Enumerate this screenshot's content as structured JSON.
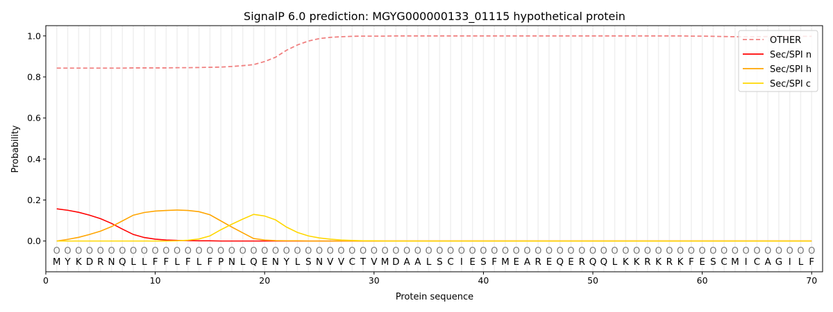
{
  "chart_data": {
    "type": "line",
    "title": "SignalP 6.0 prediction: MGYG000000133_01115 hypothetical protein",
    "xlabel": "Protein sequence",
    "ylabel": "Probability",
    "xlim": [
      0,
      71
    ],
    "ylim": [
      -0.15,
      1.05
    ],
    "xticks": [
      0,
      10,
      20,
      30,
      40,
      50,
      60,
      70
    ],
    "yticks": [
      "0.0",
      "0.2",
      "0.4",
      "0.6",
      "0.8",
      "1.0"
    ],
    "grid": "vertical lines at each residue",
    "legend_position": "top-right",
    "sequence": [
      "M",
      "Y",
      "K",
      "D",
      "R",
      "N",
      "Q",
      "L",
      "L",
      "F",
      "F",
      "L",
      "F",
      "L",
      "F",
      "P",
      "N",
      "L",
      "Q",
      "E",
      "N",
      "Y",
      "L",
      "S",
      "N",
      "V",
      "V",
      "C",
      "T",
      "V",
      "M",
      "D",
      "A",
      "A",
      "L",
      "S",
      "C",
      "I",
      "E",
      "S",
      "F",
      "M",
      "E",
      "A",
      "R",
      "E",
      "Q",
      "E",
      "R",
      "Q",
      "Q",
      "L",
      "K",
      "K",
      "R",
      "K",
      "R",
      "K",
      "F",
      "E",
      "S",
      "C",
      "M",
      "I",
      "C",
      "A",
      "G",
      "I",
      "L",
      "F"
    ],
    "position_marker": "O",
    "series": [
      {
        "name": "OTHER",
        "color": "#f08080",
        "style": "dashed",
        "values": [
          0.843,
          0.843,
          0.843,
          0.843,
          0.843,
          0.843,
          0.843,
          0.844,
          0.844,
          0.844,
          0.844,
          0.845,
          0.845,
          0.846,
          0.847,
          0.848,
          0.851,
          0.855,
          0.86,
          0.875,
          0.896,
          0.93,
          0.956,
          0.975,
          0.987,
          0.993,
          0.996,
          0.998,
          0.999,
          0.999,
          0.999,
          1.0,
          1.0,
          1.0,
          1.0,
          1.0,
          1.0,
          1.0,
          1.0,
          1.0,
          1.0,
          1.0,
          1.0,
          1.0,
          1.0,
          1.0,
          1.0,
          1.0,
          1.0,
          1.0,
          1.0,
          1.0,
          1.0,
          1.0,
          1.0,
          1.0,
          1.0,
          1.0,
          0.999,
          0.999,
          0.998,
          0.997,
          0.996,
          0.996,
          0.996,
          0.997,
          0.997,
          0.997,
          0.998,
          0.998
        ]
      },
      {
        "name": "Sec/SPI n",
        "color": "#ff0000",
        "style": "solid",
        "values": [
          0.157,
          0.15,
          0.14,
          0.126,
          0.109,
          0.086,
          0.058,
          0.032,
          0.017,
          0.009,
          0.005,
          0.003,
          0.002,
          0.001,
          0.001,
          0,
          0,
          0,
          0,
          0,
          0,
          0,
          0,
          0,
          0,
          0,
          0,
          0,
          0,
          0,
          0,
          0,
          0,
          0,
          0,
          0,
          0,
          0,
          0,
          0,
          0,
          0,
          0,
          0,
          0,
          0,
          0,
          0,
          0,
          0,
          0,
          0,
          0,
          0,
          0,
          0,
          0,
          0,
          0,
          0,
          0,
          0,
          0,
          0,
          0,
          0,
          0,
          0,
          0,
          0
        ]
      },
      {
        "name": "Sec/SPI h",
        "color": "#ffa500",
        "style": "solid",
        "values": [
          0.0,
          0.008,
          0.018,
          0.032,
          0.048,
          0.07,
          0.098,
          0.126,
          0.139,
          0.146,
          0.149,
          0.151,
          0.149,
          0.143,
          0.128,
          0.098,
          0.068,
          0.04,
          0.012,
          0.005,
          0.002,
          0.001,
          0.001,
          0,
          0,
          0,
          0,
          0,
          0,
          0,
          0,
          0,
          0,
          0,
          0,
          0,
          0,
          0,
          0,
          0,
          0,
          0,
          0,
          0,
          0,
          0,
          0,
          0,
          0,
          0,
          0,
          0,
          0,
          0,
          0,
          0,
          0,
          0,
          0,
          0,
          0,
          0,
          0,
          0,
          0,
          0,
          0,
          0,
          0,
          0
        ]
      },
      {
        "name": "Sec/SPI c",
        "color": "#ffd700",
        "style": "solid",
        "values": [
          0,
          0,
          0,
          0,
          0,
          0,
          0,
          0,
          0,
          0,
          0,
          0.001,
          0.004,
          0.01,
          0.025,
          0.055,
          0.082,
          0.107,
          0.13,
          0.122,
          0.103,
          0.068,
          0.042,
          0.025,
          0.015,
          0.009,
          0.005,
          0.003,
          0.001,
          0.001,
          0,
          0,
          0,
          0,
          0,
          0,
          0,
          0,
          0,
          0,
          0,
          0,
          0,
          0,
          0,
          0,
          0,
          0,
          0,
          0,
          0,
          0,
          0,
          0,
          0,
          0,
          0,
          0,
          0,
          0,
          0,
          0,
          0,
          0,
          0,
          0,
          0,
          0,
          0,
          0
        ]
      }
    ]
  }
}
